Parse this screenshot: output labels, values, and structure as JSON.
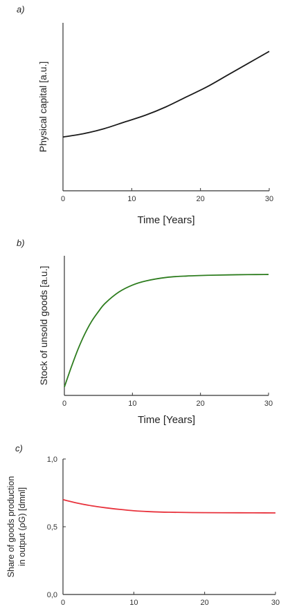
{
  "chart_data": [
    {
      "panel_label": "a)",
      "type": "line",
      "xlabel": "Time [Years]",
      "ylabel": "Physical capital [a.u.]",
      "xlim": [
        0,
        30
      ],
      "xticks": [
        "0",
        "10",
        "20",
        "30"
      ],
      "yticks": [],
      "ylim": [
        0,
        1
      ],
      "grid": false,
      "color": "#1a1a1a",
      "series": [
        {
          "x": [
            0,
            3,
            6,
            9,
            12,
            15,
            18,
            21,
            24,
            27,
            30
          ],
          "values": [
            0.32,
            0.34,
            0.37,
            0.41,
            0.45,
            0.5,
            0.56,
            0.62,
            0.69,
            0.76,
            0.83
          ]
        }
      ]
    },
    {
      "panel_label": "b)",
      "type": "line",
      "xlabel": "Time [Years]",
      "ylabel": "Stock of unsold goods [a.u.]",
      "xlim": [
        0,
        30
      ],
      "xticks": [
        "0",
        "10",
        "20",
        "30"
      ],
      "yticks": [],
      "ylim": [
        0,
        1
      ],
      "grid": false,
      "color": "#2e7d1f",
      "series": [
        {
          "x": [
            0,
            1,
            2,
            3,
            4,
            5,
            6,
            8,
            10,
            12,
            15,
            18,
            21,
            24,
            27,
            30
          ],
          "values": [
            0.06,
            0.2,
            0.33,
            0.44,
            0.53,
            0.6,
            0.66,
            0.74,
            0.79,
            0.82,
            0.845,
            0.855,
            0.86,
            0.863,
            0.865,
            0.866
          ]
        }
      ]
    },
    {
      "panel_label": "c)",
      "type": "line",
      "xlabel": "",
      "ylabel_line1": "Share of goods production",
      "ylabel_line2": "in output (ρG) [dmnl]",
      "xlim": [
        0,
        30
      ],
      "xticks": [
        "0",
        "10",
        "20",
        "30"
      ],
      "ylim": [
        0,
        1
      ],
      "yticks": [
        "0,0",
        "0,5",
        "1,0"
      ],
      "grid": false,
      "color": "#e8323c",
      "series": [
        {
          "x": [
            0,
            2,
            4,
            6,
            8,
            10,
            12,
            15,
            20,
            25,
            30
          ],
          "values": [
            0.7,
            0.675,
            0.655,
            0.64,
            0.628,
            0.618,
            0.612,
            0.607,
            0.604,
            0.603,
            0.602
          ]
        }
      ]
    }
  ]
}
